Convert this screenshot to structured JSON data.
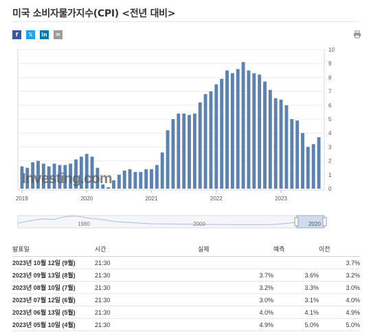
{
  "page": {
    "title": "미국 소비자물가지수(CPI) <전년 대비>"
  },
  "share": {
    "facebook": "f",
    "twitter": "𝕏",
    "linkedin": "in",
    "email": "✉",
    "colors": {
      "facebook": "#3b5998",
      "twitter": "#1da1f2",
      "linkedin": "#0077b5",
      "email": "#9b9b9b"
    }
  },
  "chart_data": {
    "type": "bar",
    "title": "",
    "xlabel": "",
    "ylabel": "",
    "ylim": [
      0,
      10
    ],
    "yticks": [
      "0",
      "1",
      "2",
      "3",
      "4",
      "5",
      "6",
      "7",
      "8",
      "9",
      "10"
    ],
    "xticks": [
      {
        "label": "2019",
        "index": 0
      },
      {
        "label": "2020",
        "index": 12
      },
      {
        "label": "2021",
        "index": 24
      },
      {
        "label": "2022",
        "index": 36
      },
      {
        "label": "2023",
        "index": 48
      }
    ],
    "bar_color": "#5b82b0",
    "values": [
      1.6,
      1.5,
      1.9,
      2.0,
      1.8,
      1.6,
      1.8,
      1.7,
      1.7,
      1.8,
      2.1,
      2.3,
      2.5,
      2.3,
      1.5,
      0.3,
      0.1,
      0.6,
      1.0,
      1.3,
      1.4,
      1.2,
      1.2,
      1.4,
      1.4,
      1.7,
      2.6,
      4.2,
      5.0,
      5.4,
      5.4,
      5.3,
      5.4,
      6.2,
      6.8,
      7.0,
      7.5,
      7.9,
      8.5,
      8.3,
      8.6,
      9.1,
      8.5,
      8.3,
      8.2,
      7.7,
      7.1,
      6.5,
      6.4,
      6.0,
      5.0,
      4.9,
      4.0,
      3.0,
      3.2,
      3.7
    ],
    "watermark": "Investing.com"
  },
  "navigator": {
    "labels": [
      "1980",
      "2000",
      "2020"
    ]
  },
  "table": {
    "headers": {
      "date": "발표일",
      "time": "시간",
      "actual": "실제",
      "forecast": "예측",
      "previous": "이전"
    },
    "rows": [
      {
        "date": "2023년 10월 12일 (9월)",
        "time": "21:30",
        "actual": "",
        "actual_color": "",
        "forecast": "",
        "previous": "3.7%"
      },
      {
        "date": "2023년 09월 13일 (8월)",
        "time": "21:30",
        "actual": "3.7%",
        "actual_color": "red",
        "forecast": "3.6%",
        "previous": "3.2%"
      },
      {
        "date": "2023년 08월 10일 (7월)",
        "time": "21:30",
        "actual": "3.2%",
        "actual_color": "blue",
        "forecast": "3.3%",
        "previous": "3.0%"
      },
      {
        "date": "2023년 07월 12일 (6월)",
        "time": "21:30",
        "actual": "3.0%",
        "actual_color": "blue",
        "forecast": "3.1%",
        "previous": "4.0%"
      },
      {
        "date": "2023년 06월 13일 (5월)",
        "time": "21:30",
        "actual": "4.0%",
        "actual_color": "blue",
        "forecast": "4.1%",
        "previous": "4.9%"
      },
      {
        "date": "2023년 05월 10일 (4월)",
        "time": "21:30",
        "actual": "4.9%",
        "actual_color": "blue",
        "forecast": "5.0%",
        "previous": "5.0%"
      }
    ]
  }
}
